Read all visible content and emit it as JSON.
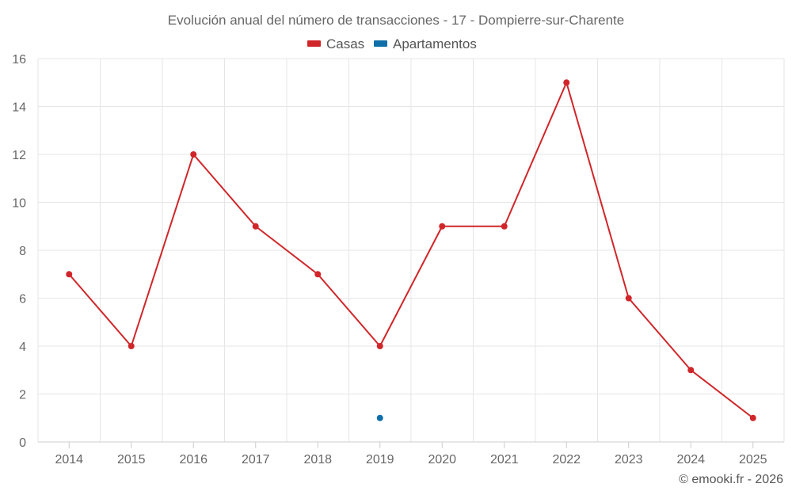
{
  "chart_data": {
    "type": "line",
    "title": "Evolución anual del número de transacciones - 17 - Dompierre-sur-Charente",
    "categories": [
      "2014",
      "2015",
      "2016",
      "2017",
      "2018",
      "2019",
      "2020",
      "2021",
      "2022",
      "2023",
      "2024",
      "2025"
    ],
    "series": [
      {
        "name": "Casas",
        "color": "#d0262a",
        "values": [
          7,
          4,
          12,
          9,
          7,
          4,
          9,
          9,
          15,
          6,
          3,
          1
        ]
      },
      {
        "name": "Apartamentos",
        "color": "#0f6fa8",
        "values": [
          null,
          null,
          null,
          null,
          null,
          1,
          null,
          null,
          null,
          null,
          null,
          null
        ]
      }
    ],
    "ylim": [
      0,
      16
    ],
    "yticks": [
      0,
      2,
      4,
      6,
      8,
      10,
      12,
      14,
      16
    ],
    "grid": true,
    "legend": "top-center",
    "xlabel": "",
    "ylabel": ""
  },
  "credit": "© emooki.fr - 2026"
}
